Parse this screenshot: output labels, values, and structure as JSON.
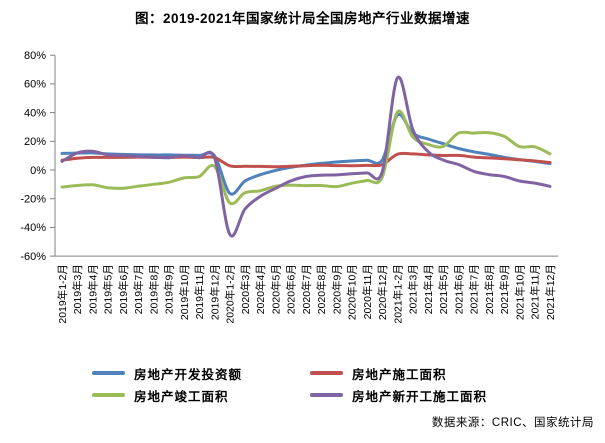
{
  "title": "图：2019-2021年国家统计局全国房地产行业数据增速",
  "source": "数据来源：CRIC、国家统计局",
  "chart_data": {
    "type": "line",
    "title": "图：2019-2021年国家统计局全国房地产行业数据增速",
    "xlabel": "",
    "ylabel": "",
    "ylim": [
      -60,
      80
    ],
    "ytick_step": 20,
    "ytick_suffix": "%",
    "grid": false,
    "smoothed": true,
    "legend_position": "bottom",
    "axis_color": "#808080",
    "label_color": "#000000",
    "categories": [
      "2019年1-2月",
      "2019年3月",
      "2019年4月",
      "2019年5月",
      "2019年6月",
      "2019年7月",
      "2019年8月",
      "2019年9月",
      "2019年10月",
      "2019年11月",
      "2019年12月",
      "2020年1-2月",
      "2020年3月",
      "2020年4月",
      "2020年5月",
      "2020年6月",
      "2020年7月",
      "2020年8月",
      "2020年9月",
      "2020年10月",
      "2020年11月",
      "2020年12月",
      "2021年1-2月",
      "2021年3月",
      "2021年4月",
      "2021年5月",
      "2021年6月",
      "2021年7月",
      "2021年8月",
      "2021年9月",
      "2021年10月",
      "2021年11月",
      "2021年12月"
    ],
    "series": [
      {
        "key": "development-investment",
        "name": "房地产开发投资额",
        "color": "#4f81bd",
        "values": [
          11.6,
          11.8,
          11.9,
          11.2,
          10.9,
          10.6,
          10.5,
          10.5,
          10.3,
          10.2,
          9.9,
          -16.3,
          -7.7,
          -3.3,
          -0.3,
          1.9,
          3.4,
          4.6,
          5.6,
          6.3,
          6.8,
          7.0,
          38.3,
          25.6,
          21.6,
          18.3,
          15.0,
          12.7,
          10.9,
          8.8,
          7.2,
          6.0,
          4.4
        ]
      },
      {
        "key": "construction-area",
        "name": "房地产施工面积",
        "color": "#c0504d",
        "values": [
          6.8,
          8.2,
          8.8,
          8.8,
          8.8,
          9.0,
          8.8,
          8.7,
          9.0,
          8.7,
          8.7,
          2.9,
          2.6,
          2.5,
          2.3,
          2.6,
          3.0,
          3.3,
          3.1,
          3.0,
          3.2,
          3.7,
          11.0,
          11.2,
          10.5,
          10.1,
          10.2,
          9.0,
          8.4,
          7.9,
          7.1,
          6.3,
          5.2
        ]
      },
      {
        "key": "completed-area",
        "name": "房地产竣工面积",
        "color": "#9bbb59",
        "values": [
          -11.9,
          -10.8,
          -10.3,
          -12.4,
          -12.7,
          -11.3,
          -10.0,
          -8.6,
          -5.5,
          -4.5,
          2.6,
          -22.9,
          -15.8,
          -14.5,
          -11.3,
          -10.5,
          -10.9,
          -10.8,
          -11.6,
          -9.2,
          -7.3,
          -4.9,
          40.4,
          22.9,
          17.9,
          16.4,
          25.7,
          25.7,
          26.0,
          23.4,
          16.3,
          16.2,
          11.2
        ]
      },
      {
        "key": "new-starts-area",
        "name": "房地产新开工施工面积",
        "color": "#8064a2",
        "values": [
          6.0,
          11.9,
          13.1,
          10.5,
          10.1,
          9.5,
          8.9,
          8.6,
          10.0,
          8.6,
          8.5,
          -44.9,
          -27.2,
          -18.4,
          -12.8,
          -7.6,
          -4.5,
          -3.6,
          -3.4,
          -2.6,
          -2.0,
          -1.2,
          64.3,
          28.2,
          12.9,
          6.9,
          3.8,
          -0.9,
          -3.2,
          -4.5,
          -7.7,
          -9.1,
          -11.4
        ]
      }
    ]
  }
}
